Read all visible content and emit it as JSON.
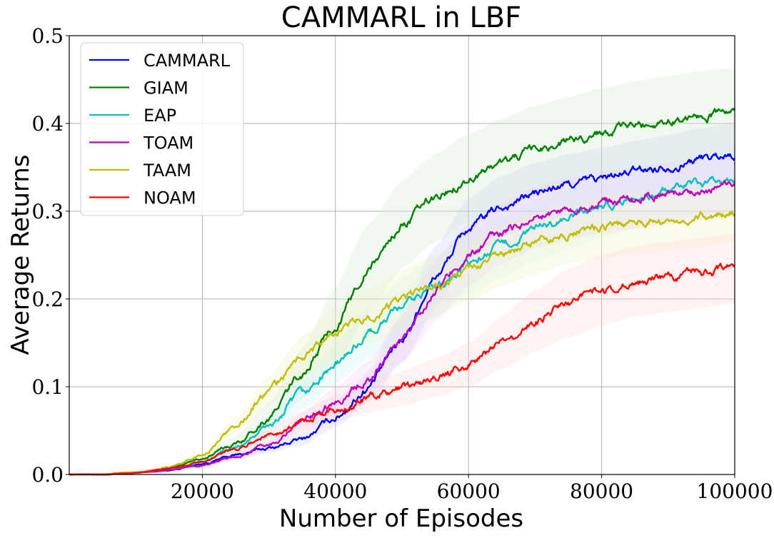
{
  "chart_data": {
    "type": "line",
    "title": "CAMMARL in LBF",
    "xlabel": "Number of Episodes",
    "ylabel": "Average Returns",
    "xlim": [
      0,
      100000
    ],
    "ylim": [
      0.0,
      0.5
    ],
    "xticks": [
      20000,
      40000,
      60000,
      80000,
      100000
    ],
    "xtick_labels": [
      "20000",
      "40000",
      "60000",
      "80000",
      "100000"
    ],
    "yticks": [
      0.0,
      0.1,
      0.2,
      0.3,
      0.4,
      0.5
    ],
    "ytick_labels": [
      "0.0",
      "0.1",
      "0.2",
      "0.3",
      "0.4",
      "0.5"
    ],
    "grid": true,
    "legend_position": "top-left",
    "x": [
      0,
      5000,
      10000,
      15000,
      20000,
      25000,
      30000,
      35000,
      40000,
      45000,
      50000,
      55000,
      60000,
      65000,
      70000,
      75000,
      80000,
      85000,
      90000,
      95000,
      100000
    ],
    "series": [
      {
        "name": "CAMMARL",
        "color": "#0000ff",
        "shade": "#c8c8ff",
        "band": 0.035,
        "values": [
          0.0,
          0.0,
          0.002,
          0.005,
          0.012,
          0.022,
          0.03,
          0.04,
          0.065,
          0.1,
          0.155,
          0.225,
          0.28,
          0.305,
          0.32,
          0.33,
          0.337,
          0.345,
          0.352,
          0.36,
          0.365
        ]
      },
      {
        "name": "GIAM",
        "color": "#008000",
        "shade": "#c8e6c8",
        "band": 0.05,
        "values": [
          0.0,
          0.0,
          0.002,
          0.007,
          0.018,
          0.035,
          0.065,
          0.115,
          0.17,
          0.235,
          0.285,
          0.315,
          0.338,
          0.355,
          0.37,
          0.38,
          0.39,
          0.398,
          0.404,
          0.41,
          0.413
        ]
      },
      {
        "name": "EAP",
        "color": "#00bfbf",
        "shade": "#c8f0f0",
        "band": 0.035,
        "values": [
          0.0,
          0.0,
          0.002,
          0.006,
          0.014,
          0.03,
          0.055,
          0.09,
          0.125,
          0.16,
          0.19,
          0.215,
          0.24,
          0.26,
          0.278,
          0.292,
          0.305,
          0.315,
          0.322,
          0.33,
          0.334
        ]
      },
      {
        "name": "TOAM",
        "color": "#bf00bf",
        "shade": "#f0c8f0",
        "band": 0.035,
        "values": [
          0.0,
          0.0,
          0.002,
          0.005,
          0.01,
          0.02,
          0.033,
          0.06,
          0.085,
          0.11,
          0.155,
          0.21,
          0.25,
          0.275,
          0.293,
          0.303,
          0.31,
          0.315,
          0.32,
          0.325,
          0.328
        ]
      },
      {
        "name": "TAAM",
        "color": "#bfbf00",
        "shade": "#f0f0c0",
        "band": 0.035,
        "values": [
          0.0,
          0.0,
          0.003,
          0.008,
          0.022,
          0.055,
          0.095,
          0.135,
          0.16,
          0.18,
          0.198,
          0.215,
          0.232,
          0.25,
          0.263,
          0.275,
          0.282,
          0.286,
          0.29,
          0.295,
          0.3
        ]
      },
      {
        "name": "NOAM",
        "color": "#ff0000",
        "shade": "#ffd2d2",
        "band": 0.04,
        "values": [
          0.0,
          0.0,
          0.002,
          0.007,
          0.015,
          0.03,
          0.045,
          0.06,
          0.075,
          0.088,
          0.098,
          0.11,
          0.125,
          0.15,
          0.175,
          0.195,
          0.21,
          0.22,
          0.225,
          0.23,
          0.235
        ]
      }
    ]
  }
}
